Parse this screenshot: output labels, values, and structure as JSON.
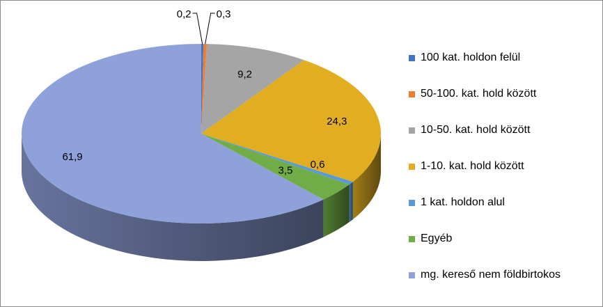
{
  "chart_data": {
    "type": "pie",
    "title": "",
    "legend_position": "right",
    "categories": [
      "100 kat. holdon felül",
      "50-100. kat. hold között",
      "10-50. kat. hold között",
      "1-10. kat. hold között",
      "1 kat. holdon alul",
      "Egyéb",
      "mg. kereső nem földbirtokos"
    ],
    "values": [
      0.2,
      0.3,
      9.2,
      24.3,
      0.6,
      3.5,
      61.9
    ],
    "data_labels": [
      "0,2",
      "0,3",
      "9,2",
      "24,3",
      "0,6",
      "3,5",
      "61,9"
    ],
    "colors": [
      "#4472C4",
      "#ED7D31",
      "#A5A5A5",
      "#E1AD21",
      "#5B9BD5",
      "#70AD47",
      "#8FA1DA"
    ]
  }
}
